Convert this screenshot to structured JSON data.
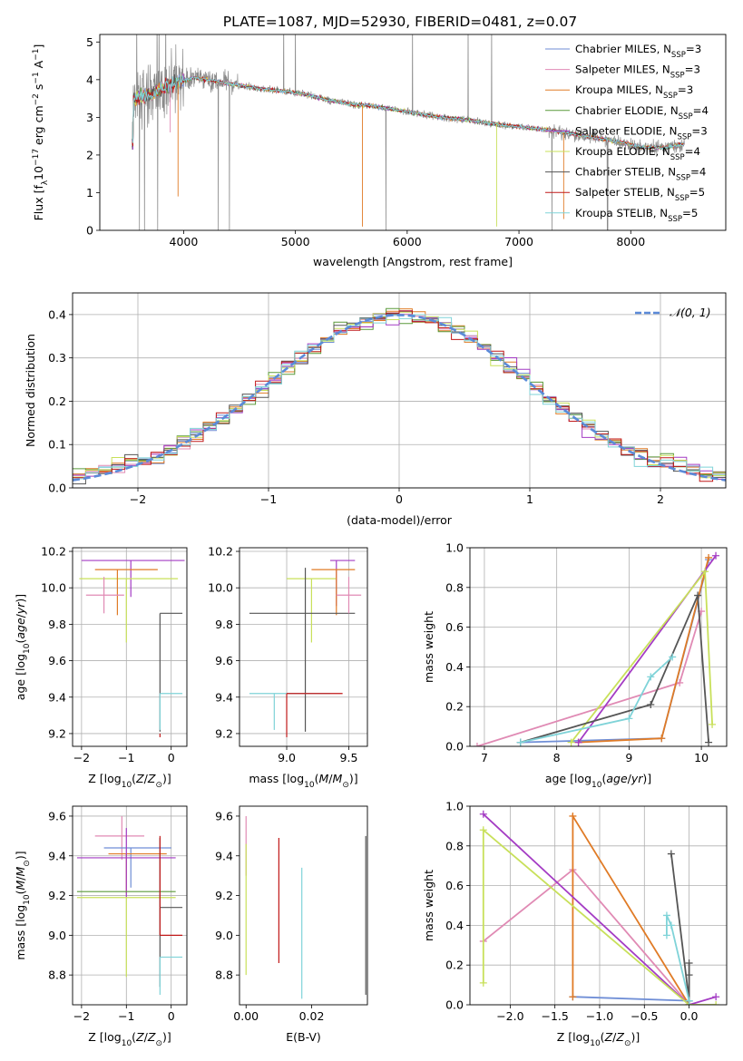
{
  "figure_title": "PLATE=1087, MJD=52930, FIBERID=0481, z=0.07",
  "colors": {
    "chabrier_miles": "#6f8ed6",
    "salpeter_miles": "#e08ab4",
    "kroupa_miles": "#e07b26",
    "chabrier_elodie": "#5a9a3a",
    "salpeter_elodie": "#a43cc4",
    "kroupa_elodie": "#c8e05a",
    "chabrier_stelib": "#555555",
    "salpeter_stelib": "#c01818",
    "kroupa_stelib": "#7fd3d8",
    "data_grey": "#8a8a8a"
  },
  "legend_labels": [
    "Chabrier MILES, N<sub>SSP</sub>=3",
    "Salpeter MILES, N<sub>SSP</sub>=3",
    "Kroupa MILES, N<sub>SSP</sub>=3",
    "Chabrier ELODIE, N<sub>SSP</sub>=4",
    "Salpeter ELODIE, N<sub>SSP</sub>=3",
    "Kroupa ELODIE, N<sub>SSP</sub>=4",
    "Chabrier STELIB, N<sub>SSP</sub>=4",
    "Salpeter STELIB, N<sub>SSP</sub>=5",
    "Kroupa STELIB, N<sub>SSP</sub>=5"
  ],
  "chart_data": [
    {
      "id": "spectrum",
      "type": "line",
      "xlabel": "wavelength [Angstrom, rest frame]",
      "ylabel": "Flux [f_λ 10^-17 erg cm^-2 s^-1 A^-1]",
      "xlim": [
        3250,
        8850
      ],
      "ylim": [
        0,
        5.2
      ],
      "xticks": [
        4000,
        5000,
        6000,
        7000,
        8000
      ],
      "yticks": [
        0,
        1,
        2,
        3,
        4,
        5
      ],
      "grid": false,
      "legend_position": "top-right",
      "series": [
        {
          "name": "Chabrier MILES, N_SSP=3",
          "color_key": "chabrier_miles"
        },
        {
          "name": "Salpeter MILES, N_SSP=3",
          "color_key": "salpeter_miles"
        },
        {
          "name": "Kroupa MILES, N_SSP=3",
          "color_key": "kroupa_miles"
        },
        {
          "name": "Chabrier ELODIE, N_SSP=4",
          "color_key": "chabrier_elodie"
        },
        {
          "name": "Salpeter ELODIE, N_SSP=3",
          "color_key": "salpeter_elodie"
        },
        {
          "name": "Kroupa ELODIE, N_SSP=4",
          "color_key": "kroupa_elodie"
        },
        {
          "name": "Chabrier STELIB, N_SSP=4",
          "color_key": "chabrier_stelib"
        },
        {
          "name": "Salpeter STELIB, N_SSP=5",
          "color_key": "salpeter_stelib"
        },
        {
          "name": "Kroupa STELIB, N_SSP=5",
          "color_key": "kroupa_stelib"
        }
      ],
      "continuum": {
        "x": [
          3550,
          3700,
          3900,
          4100,
          4300,
          4500,
          4700,
          4900,
          5100,
          5300,
          5500,
          5700,
          5900,
          6100,
          6300,
          6500,
          6700,
          6900,
          7100,
          7300,
          7500,
          7700,
          7900,
          8100,
          8300,
          8500
        ],
        "y": [
          3.5,
          3.6,
          3.9,
          4.05,
          3.95,
          3.85,
          3.75,
          3.7,
          3.6,
          3.45,
          3.35,
          3.3,
          3.2,
          3.1,
          3.0,
          2.95,
          2.85,
          2.78,
          2.72,
          2.65,
          2.55,
          2.45,
          2.35,
          2.2,
          2.2,
          2.3
        ]
      }
    },
    {
      "id": "residuals",
      "type": "line",
      "xlabel": "(data-model)/error",
      "ylabel": "Normed distribution",
      "xlim": [
        -2.5,
        2.5
      ],
      "ylim": [
        0,
        0.45
      ],
      "xticks": [
        -2,
        -1,
        0,
        1,
        2
      ],
      "yticks": [
        0.0,
        0.1,
        0.2,
        0.3,
        0.4
      ],
      "grid": true,
      "legend_position": "top-right",
      "gaussian_label": "𝒩(0, 1)",
      "gaussian": {
        "mean": 0,
        "sigma": 1,
        "color": "#5b8ad8"
      },
      "bin_width": 0.1
    },
    {
      "id": "age_vs_Z",
      "type": "scatter",
      "xlabel": "Z [log10(Z/Z☉)]",
      "ylabel": "age [log10(age/yr)]",
      "xlim": [
        -2.2,
        0.35
      ],
      "ylim": [
        9.13,
        10.22
      ],
      "xticks": [
        -2,
        -1,
        0
      ],
      "yticks": [
        9.2,
        9.4,
        9.6,
        9.8,
        10.0,
        10.2
      ],
      "grid": true,
      "errorbars": [
        {
          "series": "Salpeter ELODIE",
          "x": -0.9,
          "xerr": [
            1.1,
            1.2
          ],
          "y": 10.15,
          "yerr": [
            0.2,
            0.0
          ]
        },
        {
          "series": "Kroupa ELODIE",
          "x": -1.0,
          "xerr": [
            1.05,
            1.15
          ],
          "y": 10.05,
          "yerr": [
            0.35,
            0.0
          ]
        },
        {
          "series": "Kroupa MILES",
          "x": -1.2,
          "xerr": [
            0.5,
            0.9
          ],
          "y": 10.1,
          "yerr": [
            0.25,
            0.0
          ]
        },
        {
          "series": "Salpeter MILES",
          "x": -1.5,
          "xerr": [
            0.4,
            0.45
          ],
          "y": 9.96,
          "yerr": [
            0.1,
            0.1
          ]
        },
        {
          "series": "Chabrier STELIB",
          "x": -0.25,
          "xerr": [
            0.0,
            0.5
          ],
          "y": 9.86,
          "yerr": [
            0.65,
            0.0
          ]
        },
        {
          "series": "Kroupa STELIB",
          "x": -0.25,
          "xerr": [
            0.0,
            0.5
          ],
          "y": 9.42,
          "yerr": [
            0.2,
            0.0
          ]
        },
        {
          "series": "Salpeter STELIB",
          "x": -0.25,
          "xerr": [
            0.0,
            0.0
          ],
          "y": 9.2,
          "yerr": [
            0.02,
            0.0
          ]
        }
      ]
    },
    {
      "id": "age_vs_mass",
      "type": "scatter",
      "xlabel": "mass [log10(M/M☉)]",
      "ylabel": "",
      "xlim": [
        8.62,
        9.65
      ],
      "ylim": [
        9.13,
        10.22
      ],
      "xticks": [
        9.0,
        9.5
      ],
      "yticks": [
        9.2,
        9.4,
        9.6,
        9.8,
        10.0,
        10.2
      ],
      "grid": true,
      "errorbars": [
        {
          "series": "Salpeter ELODIE",
          "x": 9.4,
          "xerr": [
            0.05,
            0.15
          ],
          "y": 10.15,
          "yerr": [
            0.25,
            0.0
          ]
        },
        {
          "series": "Kroupa ELODIE",
          "x": 9.2,
          "xerr": [
            0.2,
            0.2
          ],
          "y": 10.05,
          "yerr": [
            0.35,
            0.0
          ]
        },
        {
          "series": "Kroupa MILES",
          "x": 9.4,
          "xerr": [
            0.2,
            0.15
          ],
          "y": 10.1,
          "yerr": [
            0.25,
            0.0
          ]
        },
        {
          "series": "Chabrier STELIB",
          "x": 9.15,
          "xerr": [
            0.45,
            0.4
          ],
          "y": 9.86,
          "yerr": [
            0.65,
            0.25
          ]
        },
        {
          "series": "Kroupa STELIB",
          "x": 8.9,
          "xerr": [
            0.2,
            0.45
          ],
          "y": 9.42,
          "yerr": [
            0.2,
            0.0
          ]
        },
        {
          "series": "Salpeter STELIB",
          "x": 9.0,
          "xerr": [
            0.0,
            0.45
          ],
          "y": 9.42,
          "yerr": [
            0.24,
            0.0
          ]
        },
        {
          "series": "Salpeter MILES",
          "x": 9.5,
          "xerr": [
            0.1,
            0.1
          ],
          "y": 9.96,
          "yerr": [
            0.1,
            0.1
          ]
        }
      ]
    },
    {
      "id": "massweight_vs_age",
      "type": "line",
      "xlabel": "age [log10(age/yr)]",
      "ylabel": "mass weight",
      "xlim": [
        6.8,
        10.35
      ],
      "ylim": [
        0,
        1
      ],
      "xticks": [
        7,
        8,
        9,
        10
      ],
      "yticks": [
        0.0,
        0.2,
        0.4,
        0.6,
        0.8,
        1.0
      ],
      "grid": true,
      "series": [
        {
          "name": "Chabrier MILES",
          "color_key": "chabrier_miles",
          "x": [
            7.5,
            9.45,
            10.1
          ],
          "y": [
            0.02,
            0.04,
            0.94
          ]
        },
        {
          "name": "Salpeter MILES",
          "color_key": "salpeter_miles",
          "x": [
            6.9,
            9.7,
            10.0
          ],
          "y": [
            0.0,
            0.32,
            0.68
          ]
        },
        {
          "name": "Kroupa MILES",
          "color_key": "kroupa_miles",
          "x": [
            8.3,
            9.45,
            10.1
          ],
          "y": [
            0.02,
            0.04,
            0.95
          ]
        },
        {
          "name": "Salpeter ELODIE",
          "color_key": "salpeter_elodie",
          "x": [
            8.3,
            10.2
          ],
          "y": [
            0.02,
            0.96
          ]
        },
        {
          "name": "Kroupa ELODIE",
          "color_key": "kroupa_elodie",
          "x": [
            8.2,
            10.05,
            10.15
          ],
          "y": [
            0.02,
            0.88,
            0.11
          ]
        },
        {
          "name": "Chabrier STELIB",
          "color_key": "chabrier_stelib",
          "x": [
            7.5,
            9.3,
            9.95,
            10.1
          ],
          "y": [
            0.02,
            0.21,
            0.76,
            0.02
          ]
        },
        {
          "name": "Kroupa STELIB",
          "color_key": "kroupa_stelib",
          "x": [
            7.5,
            9.0,
            9.3,
            9.6
          ],
          "y": [
            0.02,
            0.14,
            0.35,
            0.45
          ]
        }
      ]
    },
    {
      "id": "mass_vs_Z",
      "type": "scatter",
      "xlabel": "Z [log10(Z/Z☉)]",
      "ylabel": "mass [log10(M/M☉)]",
      "xlim": [
        -2.2,
        0.35
      ],
      "ylim": [
        8.65,
        9.65
      ],
      "xticks": [
        -2,
        -1,
        0
      ],
      "yticks": [
        8.8,
        9.0,
        9.2,
        9.4,
        9.6
      ],
      "grid": true,
      "errorbars": [
        {
          "series": "Salpeter MILES",
          "x": -1.1,
          "xerr": [
            0.6,
            0.5
          ],
          "y": 9.5,
          "yerr": [
            0.12,
            0.1
          ]
        },
        {
          "series": "Chabrier MILES",
          "x": -0.9,
          "xerr": [
            0.6,
            0.9
          ],
          "y": 9.44,
          "yerr": [
            0.2,
            0.0
          ]
        },
        {
          "series": "Kroupa MILES",
          "x": -1.0,
          "xerr": [
            0.4,
            0.9
          ],
          "y": 9.41,
          "yerr": [
            0.2,
            0.0
          ]
        },
        {
          "series": "Salpeter ELODIE",
          "x": -1.0,
          "xerr": [
            1.1,
            1.1
          ],
          "y": 9.39,
          "yerr": [
            0.2,
            0.15
          ]
        },
        {
          "series": "Chabrier ELODIE",
          "x": -1.0,
          "xerr": [
            1.1,
            1.1
          ],
          "y": 9.22,
          "yerr": [
            0.0,
            0.0
          ]
        },
        {
          "series": "Kroupa ELODIE",
          "x": -1.0,
          "xerr": [
            1.1,
            1.1
          ],
          "y": 9.19,
          "yerr": [
            0.4,
            0.0
          ]
        },
        {
          "series": "Chabrier STELIB",
          "x": -0.25,
          "xerr": [
            0.0,
            0.5
          ],
          "y": 9.14,
          "yerr": [
            0.4,
            0.35
          ]
        },
        {
          "series": "Salpeter STELIB",
          "x": -0.25,
          "xerr": [
            0.0,
            0.5
          ],
          "y": 9.0,
          "yerr": [
            0.0,
            0.5
          ]
        },
        {
          "series": "Kroupa STELIB",
          "x": -0.25,
          "xerr": [
            0.0,
            0.5
          ],
          "y": 8.89,
          "yerr": [
            0.19,
            0.0
          ]
        }
      ]
    },
    {
      "id": "mass_vs_ebv",
      "type": "scatter",
      "xlabel": "E(B-V)",
      "ylabel": "",
      "xlim": [
        -0.002,
        0.037
      ],
      "ylim": [
        8.65,
        9.65
      ],
      "xticks": [
        0.0,
        0.02
      ],
      "yticks": [
        8.8,
        9.0,
        9.2,
        9.4,
        9.6
      ],
      "grid": false,
      "errorbars": [
        {
          "series": "Salpeter MILES",
          "x": 0.0,
          "y": 9.45,
          "yerr": [
            0.15,
            0.15
          ]
        },
        {
          "series": "Kroupa ELODIE",
          "x": 0.0,
          "y": 9.2,
          "yerr": [
            0.4,
            0.26
          ]
        },
        {
          "series": "Salpeter STELIB",
          "x": 0.01,
          "y": 9.18,
          "yerr": [
            0.32,
            0.31
          ]
        },
        {
          "series": "Kroupa STELIB",
          "x": 0.017,
          "y": 9.0,
          "yerr": [
            0.32,
            0.34
          ]
        },
        {
          "series": "Chabrier STELIB",
          "x": 0.0365,
          "y": 9.1,
          "yerr": [
            0.4,
            0.4
          ]
        }
      ]
    },
    {
      "id": "massweight_vs_Z",
      "type": "line",
      "xlabel": "Z [log10(Z/Z☉)]",
      "ylabel": "mass weight",
      "xlim": [
        -2.45,
        0.42
      ],
      "ylim": [
        0,
        1
      ],
      "xticks": [
        -2.0,
        -1.5,
        -1.0,
        -0.5,
        0.0
      ],
      "yticks": [
        0.0,
        0.2,
        0.4,
        0.6,
        0.8,
        1.0
      ],
      "grid": true,
      "series": [
        {
          "name": "Chabrier MILES",
          "color_key": "chabrier_miles",
          "x": [
            -1.3,
            0.0
          ],
          "y": [
            0.04,
            0.02
          ]
        },
        {
          "name": "Salpeter MILES",
          "color_key": "salpeter_miles",
          "x": [
            -2.3,
            -1.3,
            0.0
          ],
          "y": [
            0.32,
            0.68,
            0.0
          ]
        },
        {
          "name": "Kroupa MILES",
          "color_key": "kroupa_miles",
          "x": [
            -1.3,
            -1.3,
            0.0
          ],
          "y": [
            0.04,
            0.95,
            0.0
          ]
        },
        {
          "name": "Salpeter ELODIE",
          "color_key": "salpeter_elodie",
          "x": [
            -2.3,
            0.0,
            0.3
          ],
          "y": [
            0.96,
            0.0,
            0.04
          ]
        },
        {
          "name": "Kroupa ELODIE",
          "color_key": "kroupa_elodie",
          "x": [
            -2.3,
            -2.3,
            0.0,
            0.3
          ],
          "y": [
            0.11,
            0.88,
            0.0,
            0.0
          ]
        },
        {
          "name": "Chabrier STELIB",
          "color_key": "chabrier_stelib",
          "x": [
            -0.2,
            0.0,
            0.0,
            0.0
          ],
          "y": [
            0.76,
            0.02,
            0.21,
            0.15
          ]
        },
        {
          "name": "Kroupa STELIB",
          "color_key": "kroupa_stelib",
          "x": [
            -0.25,
            -0.25,
            -0.2,
            0.0
          ],
          "y": [
            0.35,
            0.45,
            0.4,
            0.02
          ]
        }
      ]
    }
  ]
}
